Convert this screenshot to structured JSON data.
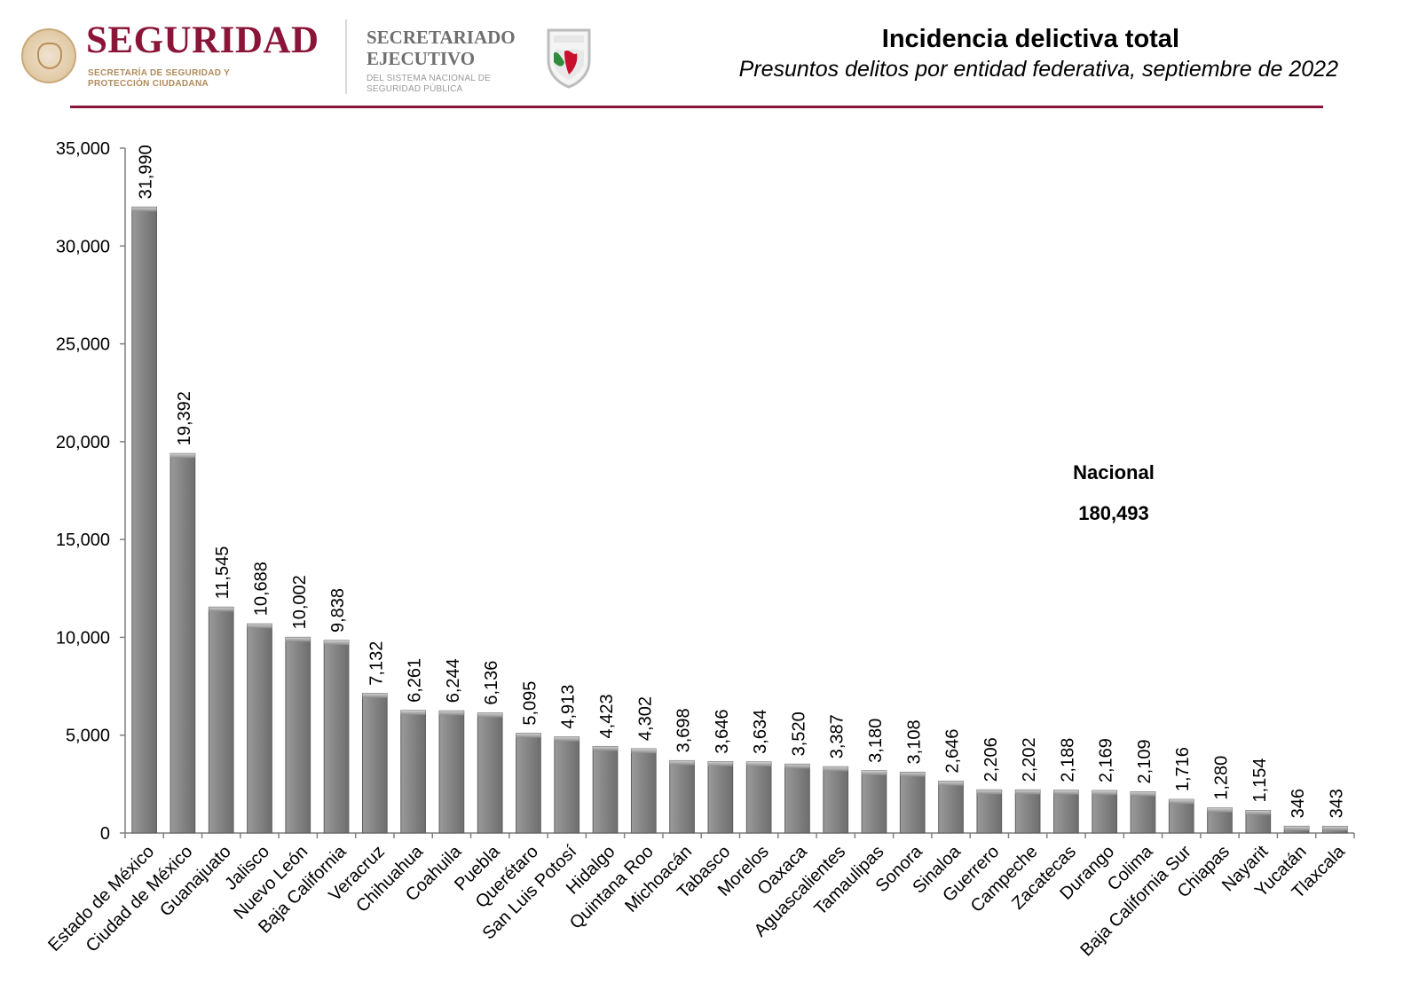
{
  "header": {
    "brand_title": "SEGURIDAD",
    "brand_sub": "SECRETARÍA DE SEGURIDAD Y PROTECCIÓN CIUDADANA",
    "secretariado": "SECRETARIADO EJECUTIVO",
    "secretariado_sub": "DEL SISTEMA NACIONAL DE SEGURIDAD PÚBLICA"
  },
  "colors": {
    "brand": "#8b1538",
    "bar_fill": "#7f7f7f",
    "bar_light": "#a6a6a6",
    "axis": "#7f7f7f"
  },
  "chart_data": {
    "type": "bar",
    "title": "Incidencia delictiva total",
    "subtitle": "Presuntos delitos por entidad federativa, septiembre de 2022",
    "xlabel": "",
    "ylabel": "",
    "ylim": [
      0,
      35000
    ],
    "yticks": [
      0,
      5000,
      10000,
      15000,
      20000,
      25000,
      30000,
      35000
    ],
    "ytick_labels": [
      "0",
      "5,000",
      "10,000",
      "15,000",
      "20,000",
      "25,000",
      "30,000",
      "35,000"
    ],
    "grid": false,
    "data_labels": true,
    "categories": [
      "Estado de México",
      "Ciudad de México",
      "Guanajuato",
      "Jalisco",
      "Nuevo León",
      "Baja California",
      "Veracruz",
      "Chihuahua",
      "Coahuila",
      "Puebla",
      "Querétaro",
      "San Luis Potosí",
      "Hidalgo",
      "Quintana Roo",
      "Michoacán",
      "Tabasco",
      "Morelos",
      "Oaxaca",
      "Aguascalientes",
      "Tamaulipas",
      "Sonora",
      "Sinaloa",
      "Guerrero",
      "Campeche",
      "Zacatecas",
      "Durango",
      "Colima",
      "Baja California Sur",
      "Chiapas",
      "Nayarit",
      "Yucatán",
      "Tlaxcala"
    ],
    "values": [
      31990,
      19392,
      11545,
      10688,
      10002,
      9838,
      7132,
      6261,
      6244,
      6136,
      5095,
      4913,
      4423,
      4302,
      3698,
      3646,
      3634,
      3520,
      3387,
      3180,
      3108,
      2646,
      2206,
      2202,
      2188,
      2169,
      2109,
      1716,
      1280,
      1154,
      346,
      343
    ],
    "value_labels": [
      "31,990",
      "19,392",
      "11,545",
      "10,688",
      "10,002",
      "9,838",
      "7,132",
      "6,261",
      "6,244",
      "6,136",
      "5,095",
      "4,913",
      "4,423",
      "4,302",
      "3,698",
      "3,646",
      "3,634",
      "3,520",
      "3,387",
      "3,180",
      "3,108",
      "2,646",
      "2,206",
      "2,202",
      "2,188",
      "2,169",
      "2,109",
      "1,716",
      "1,280",
      "1,154",
      "346",
      "343"
    ],
    "annotation": {
      "label": "Nacional",
      "value": "180,493"
    }
  }
}
